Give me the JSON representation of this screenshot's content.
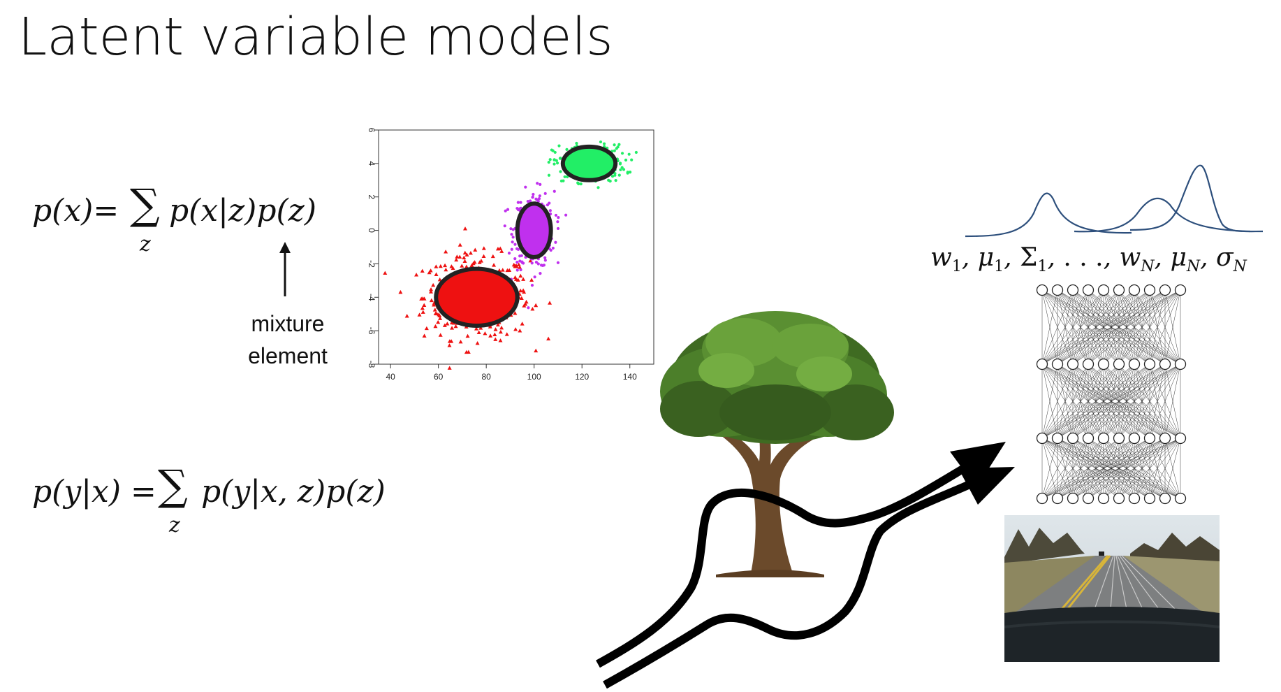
{
  "slide": {
    "title": "Latent variable models"
  },
  "equations": {
    "mixture_lhs": "p(x)=",
    "mixture_sum_symbol": "∑",
    "mixture_sum_index": "z",
    "mixture_rhs": "p(x|z)p(z)",
    "conditional_lhs": "p(y|x) =",
    "conditional_sum_symbol": "∑",
    "conditional_sum_index": "z",
    "conditional_rhs": "p(y|x, z)p(z)"
  },
  "annotation": {
    "line1": "mixture",
    "line2": "element"
  },
  "gaussian_params": {
    "text": "w₁, μ₁, Σ₁, . . . , w_N, μ_N, σ_N",
    "w1": "w",
    "mu1": "μ",
    "Sigma1": "Σ",
    "sub1": "1",
    "dots": ". . .",
    "subN": "N",
    "sigma": "σ"
  },
  "chart_data": {
    "type": "scatter",
    "title": "",
    "xlabel": "",
    "ylabel": "",
    "xlim": [
      35,
      150
    ],
    "ylim": [
      -8,
      6
    ],
    "xticks": [
      "40",
      "60",
      "80",
      "100",
      "120",
      "140"
    ],
    "yticks": [
      "-8",
      "-6",
      "-4",
      "-2",
      "0",
      "2",
      "4",
      "6"
    ],
    "clusters": [
      {
        "color": "#ee1111",
        "marker": "triangle",
        "center": [
          76,
          -4
        ],
        "ellipse_radii": [
          17,
          1.7
        ]
      },
      {
        "color": "#c030ee",
        "marker": "circle",
        "center": [
          100,
          0
        ],
        "ellipse_radii": [
          7,
          1.6
        ]
      },
      {
        "color": "#22ee66",
        "marker": "circle",
        "center": [
          123,
          4
        ],
        "ellipse_radii": [
          11,
          1.0
        ]
      }
    ]
  },
  "colors": {
    "curve": "#2d4f7c",
    "arrow": "#000000",
    "ellipse_outline": "#222222"
  },
  "icons": {
    "tree": "tree-illustration",
    "network": "neural-network-diagram",
    "photo": "road-camera-view"
  }
}
